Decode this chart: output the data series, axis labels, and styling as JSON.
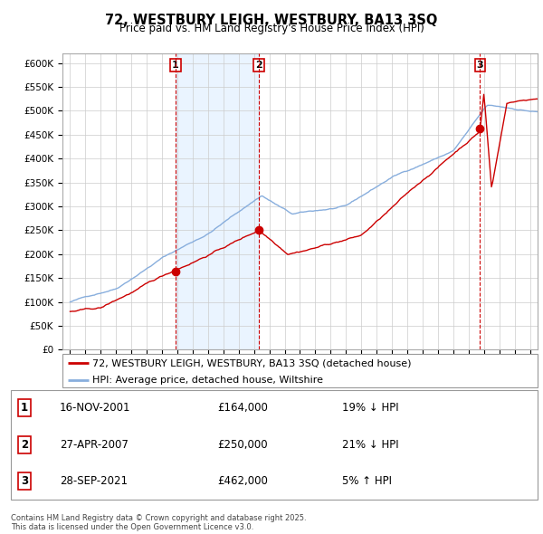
{
  "title": "72, WESTBURY LEIGH, WESTBURY, BA13 3SQ",
  "subtitle": "Price paid vs. HM Land Registry's House Price Index (HPI)",
  "legend_red": "72, WESTBURY LEIGH, WESTBURY, BA13 3SQ (detached house)",
  "legend_blue": "HPI: Average price, detached house, Wiltshire",
  "transactions": [
    {
      "label": "1",
      "date": 2001.88,
      "price": 164000
    },
    {
      "label": "2",
      "date": 2007.32,
      "price": 250000
    },
    {
      "label": "3",
      "date": 2021.74,
      "price": 462000
    }
  ],
  "table_rows": [
    {
      "num": "1",
      "date": "16-NOV-2001",
      "price": "£164,000",
      "hpi": "19% ↓ HPI"
    },
    {
      "num": "2",
      "date": "27-APR-2007",
      "price": "£250,000",
      "hpi": "21% ↓ HPI"
    },
    {
      "num": "3",
      "date": "28-SEP-2021",
      "price": "£462,000",
      "hpi": "5% ↑ HPI"
    }
  ],
  "footer": "Contains HM Land Registry data © Crown copyright and database right 2025.\nThis data is licensed under the Open Government Licence v3.0.",
  "ylim": [
    0,
    620000
  ],
  "xlim_start": 1994.5,
  "xlim_end": 2025.5,
  "red_color": "#cc0000",
  "blue_color": "#88aedd",
  "background_color": "#ddeeff",
  "plot_bg": "#ffffff",
  "vline_color": "#cc0000",
  "grid_color": "#cccccc"
}
